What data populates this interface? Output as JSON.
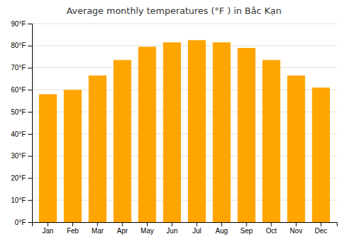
{
  "chart_data": {
    "type": "bar",
    "title": "Average monthly temperatures (°F ) in Bắc Kạn",
    "categories": [
      "Jan",
      "Feb",
      "Mar",
      "Apr",
      "May",
      "Jun",
      "Jul",
      "Aug",
      "Sep",
      "Oct",
      "Nov",
      "Dec"
    ],
    "values": [
      58,
      60,
      66.5,
      73.5,
      79.5,
      81.5,
      82.5,
      81.5,
      79,
      73.5,
      66.5,
      61
    ],
    "color": "#FFA500",
    "ylim": [
      0,
      90
    ],
    "yticks": [
      {
        "value": 0,
        "label": "0°F"
      },
      {
        "value": 10,
        "label": "10°F"
      },
      {
        "value": 20,
        "label": "20°F"
      },
      {
        "value": 30,
        "label": "30°F"
      },
      {
        "value": 40,
        "label": "40°F"
      },
      {
        "value": 50,
        "label": "50°F"
      },
      {
        "value": 60,
        "label": "60°F"
      },
      {
        "value": 70,
        "label": "70°F"
      },
      {
        "value": 80,
        "label": "80°F"
      },
      {
        "value": 90,
        "label": "90°F"
      }
    ],
    "grid": true
  }
}
